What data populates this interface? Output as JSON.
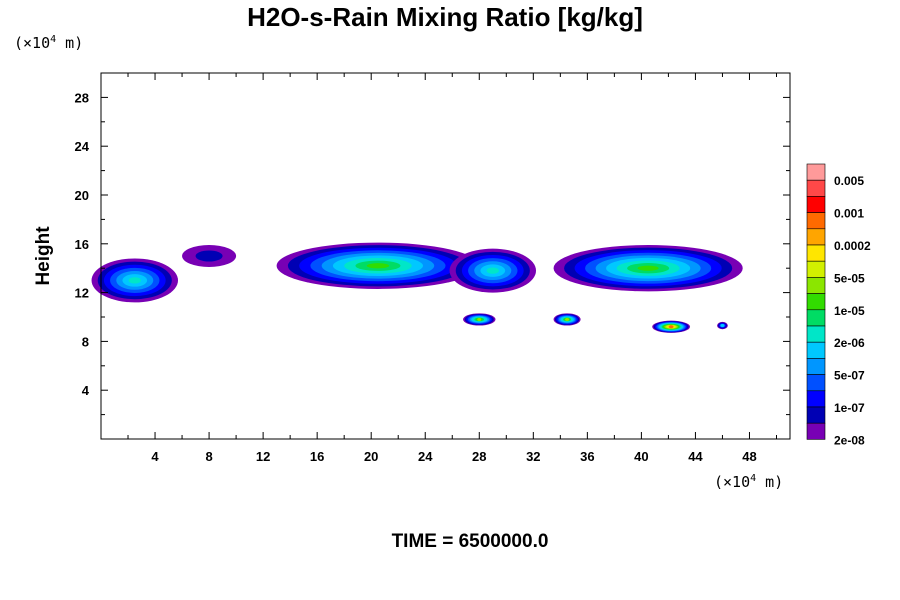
{
  "chart_data": {
    "type": "heatmap",
    "title": "H2O-s-Rain Mixing Ratio [kg/kg]",
    "ylabel": "Height",
    "y_unit": {
      "prefix": "(×10",
      "exp": "4",
      "suffix": " m)"
    },
    "x_unit": {
      "prefix": "(×10",
      "exp": "4",
      "suffix": " m)"
    },
    "xlim": [
      0,
      51
    ],
    "ylim": [
      0,
      30
    ],
    "x_ticks": [
      "4",
      "8",
      "12",
      "16",
      "20",
      "24",
      "28",
      "32",
      "36",
      "40",
      "44",
      "48"
    ],
    "y_ticks": [
      "4",
      "8",
      "12",
      "16",
      "20",
      "24",
      "28"
    ],
    "colorbar": {
      "labels": [
        "0.005",
        "0.001",
        "0.0002",
        "5e-05",
        "1e-05",
        "2e-06",
        "5e-07",
        "1e-07",
        "2e-08"
      ],
      "colors": [
        "#ff9a9a",
        "#ff4848",
        "#ff0000",
        "#ff6a00",
        "#ffa500",
        "#ffe600",
        "#d2f000",
        "#8be600",
        "#32dc00",
        "#00dc64",
        "#00e6c8",
        "#00c8ff",
        "#0096ff",
        "#0050ff",
        "#0000ff",
        "#0000b4",
        "#7800b4"
      ]
    },
    "contour_regions": [
      {
        "x": 2.5,
        "y": 13.0,
        "rx": 3.2,
        "ry": 1.8,
        "level": 10
      },
      {
        "x": 8.0,
        "y": 15.0,
        "rx": 2.0,
        "ry": 0.9,
        "level": 15
      },
      {
        "x": 20.5,
        "y": 14.2,
        "rx": 7.5,
        "ry": 1.9,
        "level": 8
      },
      {
        "x": 29.0,
        "y": 13.8,
        "rx": 3.2,
        "ry": 1.8,
        "level": 10
      },
      {
        "x": 40.5,
        "y": 14.0,
        "rx": 7.0,
        "ry": 1.9,
        "level": 8
      },
      {
        "x": 28.0,
        "y": 9.8,
        "rx": 1.2,
        "ry": 0.5,
        "level": 7
      },
      {
        "x": 34.5,
        "y": 9.8,
        "rx": 1.0,
        "ry": 0.5,
        "level": 7
      },
      {
        "x": 42.2,
        "y": 9.2,
        "rx": 1.4,
        "ry": 0.5,
        "level": 3
      },
      {
        "x": 46.0,
        "y": 9.3,
        "rx": 0.4,
        "ry": 0.3,
        "level": 11
      }
    ]
  },
  "footer": {
    "time": "TIME = 6500000.0"
  }
}
